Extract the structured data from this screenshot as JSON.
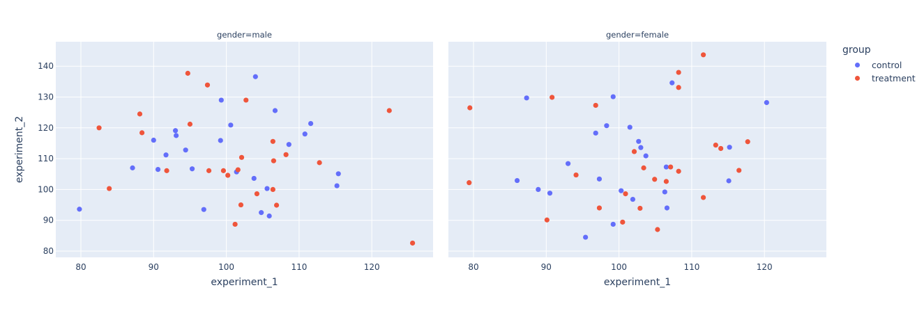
{
  "chart_data": {
    "type": "scatter",
    "facet_by": "gender",
    "color_by": "group",
    "xlabel": "experiment_1",
    "ylabel": "experiment_2",
    "xlim": [
      76.5,
      128.3
    ],
    "ylim": [
      78,
      148
    ],
    "x_ticks": [
      80,
      90,
      100,
      110,
      120
    ],
    "y_ticks": [
      80,
      90,
      100,
      110,
      120,
      130,
      140
    ],
    "grid": true,
    "legend_position": "right",
    "legend_title": "group",
    "colors": {
      "control": "#636efa",
      "treatment": "#ef553b",
      "plot_bg": "#e5ecf6",
      "grid": "#ffffff"
    },
    "panels": [
      {
        "title": "gender=male",
        "series": [
          {
            "name": "control",
            "points": [
              [
                79.8,
                93.6
              ],
              [
                87.1,
                107.0
              ],
              [
                90.0,
                116.0
              ],
              [
                90.6,
                106.5
              ],
              [
                91.7,
                111.2
              ],
              [
                93.0,
                119.1
              ],
              [
                93.1,
                117.5
              ],
              [
                94.4,
                112.8
              ],
              [
                95.3,
                106.7
              ],
              [
                96.9,
                93.5
              ],
              [
                99.2,
                115.9
              ],
              [
                99.3,
                129.0
              ],
              [
                100.6,
                120.9
              ],
              [
                101.4,
                105.7
              ],
              [
                103.8,
                103.6
              ],
              [
                104.0,
                136.6
              ],
              [
                104.8,
                92.5
              ],
              [
                105.6,
                100.3
              ],
              [
                105.9,
                91.4
              ],
              [
                106.7,
                125.6
              ],
              [
                108.6,
                114.6
              ],
              [
                110.8,
                118.0
              ],
              [
                111.6,
                121.4
              ],
              [
                115.2,
                101.2
              ],
              [
                115.4,
                105.1
              ]
            ]
          },
          {
            "name": "treatment",
            "points": [
              [
                82.5,
                120.0
              ],
              [
                83.9,
                100.3
              ],
              [
                88.1,
                124.5
              ],
              [
                88.4,
                118.4
              ],
              [
                91.8,
                106.1
              ],
              [
                94.7,
                137.7
              ],
              [
                95.0,
                121.2
              ],
              [
                97.4,
                133.9
              ],
              [
                97.6,
                106.1
              ],
              [
                99.6,
                106.1
              ],
              [
                100.2,
                104.6
              ],
              [
                101.2,
                88.7
              ],
              [
                101.6,
                106.4
              ],
              [
                102.0,
                95.0
              ],
              [
                102.1,
                110.4
              ],
              [
                102.7,
                129.0
              ],
              [
                104.2,
                98.6
              ],
              [
                106.4,
                115.6
              ],
              [
                106.5,
                109.3
              ],
              [
                106.4,
                100.0
              ],
              [
                106.9,
                94.9
              ],
              [
                108.2,
                111.3
              ],
              [
                112.8,
                108.7
              ],
              [
                122.4,
                125.6
              ],
              [
                125.6,
                82.6
              ]
            ]
          }
        ]
      },
      {
        "title": "gender=female",
        "series": [
          {
            "name": "control",
            "points": [
              [
                86.0,
                102.9
              ],
              [
                87.3,
                129.7
              ],
              [
                88.9,
                100.0
              ],
              [
                90.5,
                98.8
              ],
              [
                93.0,
                108.4
              ],
              [
                95.4,
                84.5
              ],
              [
                96.8,
                118.3
              ],
              [
                97.3,
                103.4
              ],
              [
                98.3,
                120.7
              ],
              [
                99.2,
                130.1
              ],
              [
                99.2,
                88.7
              ],
              [
                100.3,
                99.6
              ],
              [
                101.5,
                120.2
              ],
              [
                101.9,
                96.8
              ],
              [
                102.7,
                115.6
              ],
              [
                103.0,
                113.6
              ],
              [
                103.7,
                110.9
              ],
              [
                106.3,
                99.2
              ],
              [
                106.5,
                107.3
              ],
              [
                106.6,
                94.0
              ],
              [
                107.3,
                134.6
              ],
              [
                115.2,
                113.7
              ],
              [
                115.1,
                102.8
              ],
              [
                120.3,
                128.2
              ]
            ]
          },
          {
            "name": "treatment",
            "points": [
              [
                79.5,
                126.5
              ],
              [
                79.4,
                102.2
              ],
              [
                90.1,
                90.1
              ],
              [
                90.8,
                129.9
              ],
              [
                94.1,
                104.7
              ],
              [
                96.8,
                127.3
              ],
              [
                97.3,
                94.0
              ],
              [
                100.5,
                89.4
              ],
              [
                100.9,
                98.6
              ],
              [
                102.1,
                112.3
              ],
              [
                102.9,
                93.9
              ],
              [
                103.4,
                107.0
              ],
              [
                104.9,
                103.3
              ],
              [
                105.3,
                87.0
              ],
              [
                106.5,
                102.6
              ],
              [
                107.1,
                107.3
              ],
              [
                108.2,
                138.0
              ],
              [
                108.2,
                133.1
              ],
              [
                108.2,
                105.9
              ],
              [
                111.6,
                143.7
              ],
              [
                111.6,
                97.4
              ],
              [
                113.3,
                114.4
              ],
              [
                114.0,
                113.3
              ],
              [
                116.5,
                106.2
              ],
              [
                117.7,
                115.5
              ]
            ]
          }
        ]
      }
    ]
  },
  "legend": {
    "title": "group",
    "items": [
      {
        "label": "control",
        "color": "#636efa"
      },
      {
        "label": "treatment",
        "color": "#ef553b"
      }
    ]
  }
}
